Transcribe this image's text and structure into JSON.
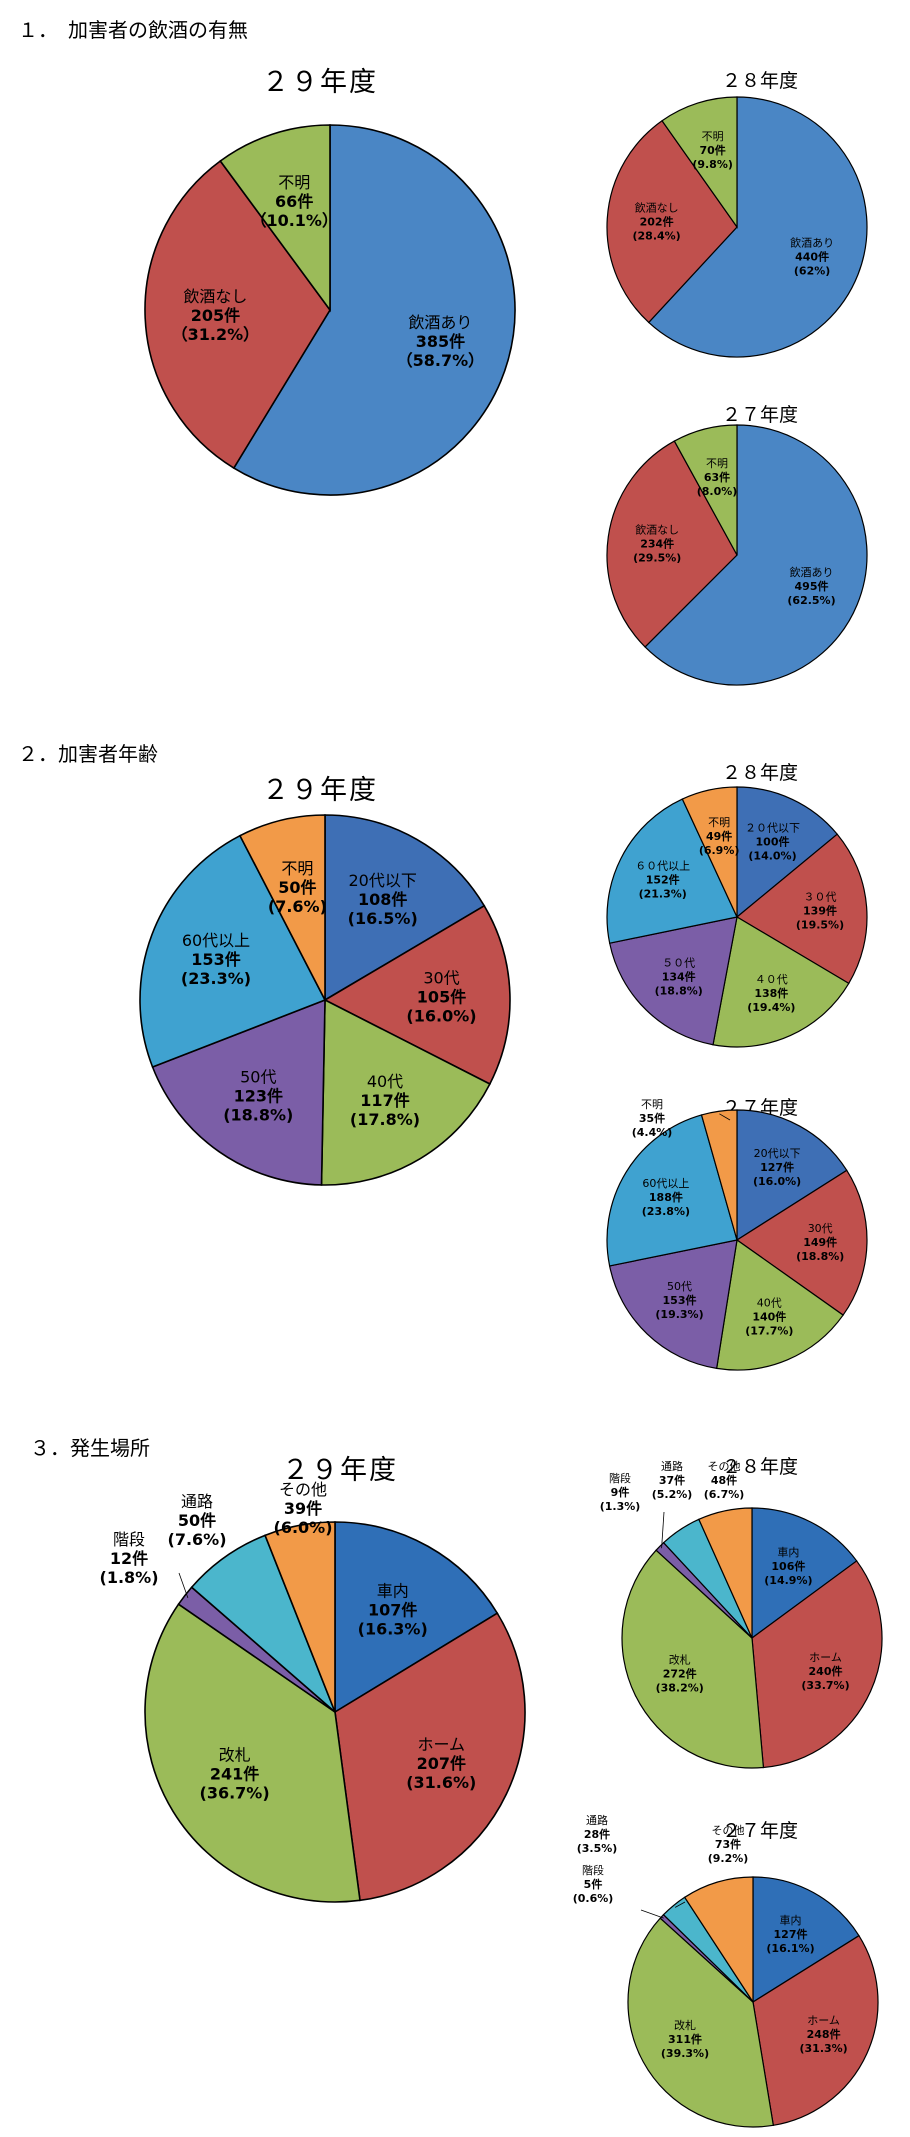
{
  "sections": [
    {
      "title": "１．　加害者の飲酒の有無",
      "charts": [
        {
          "year": "２９年度",
          "chart_data": {
            "type": "pie",
            "title": "２９年度",
            "slices": [
              {
                "name": "飲酒あり",
                "count_label": "385件",
                "pct_label": "（58.7%）",
                "value": 58.7,
                "color": "#4a86c5"
              },
              {
                "name": "飲酒なし",
                "count_label": "205件",
                "pct_label": "（31.2%）",
                "value": 31.2,
                "color": "#c0504d"
              },
              {
                "name": "不明",
                "count_label": "66件",
                "pct_label": "（10.1%）",
                "value": 10.1,
                "color": "#9bbb59"
              }
            ]
          }
        },
        {
          "year": "２８年度",
          "chart_data": {
            "type": "pie",
            "title": "２８年度",
            "slices": [
              {
                "name": "飲酒あり",
                "count_label": "440件",
                "pct_label": "(62%)",
                "value": 62.0,
                "color": "#4a86c5"
              },
              {
                "name": "飲酒なし",
                "count_label": "202件",
                "pct_label": "(28.4%)",
                "value": 28.4,
                "color": "#c0504d"
              },
              {
                "name": "不明",
                "count_label": "70件",
                "pct_label": "(9.8%)",
                "value": 9.8,
                "color": "#9bbb59"
              }
            ]
          }
        },
        {
          "year": "２７年度",
          "chart_data": {
            "type": "pie",
            "title": "２７年度",
            "slices": [
              {
                "name": "飲酒あり",
                "count_label": "495件",
                "pct_label": "(62.5%)",
                "value": 62.5,
                "color": "#4a86c5"
              },
              {
                "name": "飲酒なし",
                "count_label": "234件",
                "pct_label": "(29.5%)",
                "value": 29.5,
                "color": "#c0504d"
              },
              {
                "name": "不明",
                "count_label": "63件",
                "pct_label": "(8.0%)",
                "value": 8.0,
                "color": "#9bbb59"
              }
            ]
          }
        }
      ]
    },
    {
      "title": "２．加害者年齢",
      "charts": [
        {
          "year": "２９年度",
          "chart_data": {
            "type": "pie",
            "title": "２９年度",
            "slices": [
              {
                "name": "20代以下",
                "count_label": "108件",
                "pct_label": "(16.5%)",
                "value": 16.5,
                "color": "#3e6fb5"
              },
              {
                "name": "30代",
                "count_label": "105件",
                "pct_label": "(16.0%)",
                "value": 16.0,
                "color": "#c0504d"
              },
              {
                "name": "40代",
                "count_label": "117件",
                "pct_label": "(17.8%)",
                "value": 17.8,
                "color": "#9bbb59"
              },
              {
                "name": "50代",
                "count_label": "123件",
                "pct_label": "(18.8%)",
                "value": 18.8,
                "color": "#7b5ea7"
              },
              {
                "name": "60代以上",
                "count_label": "153件",
                "pct_label": "(23.3%)",
                "value": 23.3,
                "color": "#3fa2d0"
              },
              {
                "name": "不明",
                "count_label": "50件",
                "pct_label": "(7.6%)",
                "value": 7.6,
                "color": "#f29a48"
              }
            ]
          }
        },
        {
          "year": "２８年度",
          "chart_data": {
            "type": "pie",
            "title": "２８年度",
            "slices": [
              {
                "name": "２０代以下",
                "count_label": "100件",
                "pct_label": "(14.0%)",
                "value": 14.0,
                "color": "#3e6fb5"
              },
              {
                "name": "３０代",
                "count_label": "139件",
                "pct_label": "(19.5%)",
                "value": 19.5,
                "color": "#c0504d"
              },
              {
                "name": "４０代",
                "count_label": "138件",
                "pct_label": "(19.4%)",
                "value": 19.4,
                "color": "#9bbb59"
              },
              {
                "name": "５０代",
                "count_label": "134件",
                "pct_label": "(18.8%)",
                "value": 18.8,
                "color": "#7b5ea7"
              },
              {
                "name": "６０代以上",
                "count_label": "152件",
                "pct_label": "(21.3%)",
                "value": 21.3,
                "color": "#3fa2d0"
              },
              {
                "name": "不明",
                "count_label": "49件",
                "pct_label": "(6.9%)",
                "value": 6.9,
                "color": "#f29a48"
              }
            ]
          }
        },
        {
          "year": "２７年度",
          "chart_data": {
            "type": "pie",
            "title": "２７年度",
            "slices": [
              {
                "name": "20代以下",
                "count_label": "127件",
                "pct_label": "(16.0%)",
                "value": 16.0,
                "color": "#3e6fb5"
              },
              {
                "name": "30代",
                "count_label": "149件",
                "pct_label": "(18.8%)",
                "value": 18.8,
                "color": "#c0504d"
              },
              {
                "name": "40代",
                "count_label": "140件",
                "pct_label": "(17.7%)",
                "value": 17.7,
                "color": "#9bbb59"
              },
              {
                "name": "50代",
                "count_label": "153件",
                "pct_label": "(19.3%)",
                "value": 19.3,
                "color": "#7b5ea7"
              },
              {
                "name": "60代以上",
                "count_label": "188件",
                "pct_label": "(23.8%)",
                "value": 23.8,
                "color": "#3fa2d0"
              },
              {
                "name": "不明",
                "count_label": "35件",
                "pct_label": "(4.4%)",
                "value": 4.4,
                "color": "#f29a48"
              }
            ]
          }
        }
      ]
    },
    {
      "title": "３．発生場所",
      "charts": [
        {
          "year": "２９年度",
          "chart_data": {
            "type": "pie",
            "title": "２９年度",
            "slices": [
              {
                "name": "車内",
                "count_label": "107件",
                "pct_label": "(16.3%)",
                "value": 16.3,
                "color": "#2f6fb7"
              },
              {
                "name": "ホーム",
                "count_label": "207件",
                "pct_label": "(31.6%)",
                "value": 31.6,
                "color": "#c0504d"
              },
              {
                "name": "改札",
                "count_label": "241件",
                "pct_label": "(36.7%)",
                "value": 36.7,
                "color": "#9bbb59"
              },
              {
                "name": "階段",
                "count_label": "12件",
                "pct_label": "(1.8%)",
                "value": 1.8,
                "color": "#7b5ea7"
              },
              {
                "name": "通路",
                "count_label": "50件",
                "pct_label": "(7.6%)",
                "value": 7.6,
                "color": "#4bb6cc"
              },
              {
                "name": "その他",
                "count_label": "39件",
                "pct_label": "(6.0%)",
                "value": 6.0,
                "color": "#f29a48"
              }
            ]
          }
        },
        {
          "year": "２８年度",
          "chart_data": {
            "type": "pie",
            "title": "２８年度",
            "slices": [
              {
                "name": "車内",
                "count_label": "106件",
                "pct_label": "(14.9%)",
                "value": 14.9,
                "color": "#2f6fb7"
              },
              {
                "name": "ホーム",
                "count_label": "240件",
                "pct_label": "(33.7%)",
                "value": 33.7,
                "color": "#c0504d"
              },
              {
                "name": "改札",
                "count_label": "272件",
                "pct_label": "(38.2%)",
                "value": 38.2,
                "color": "#9bbb59"
              },
              {
                "name": "階段",
                "count_label": "9件",
                "pct_label": "(1.3%)",
                "value": 1.3,
                "color": "#7b5ea7"
              },
              {
                "name": "通路",
                "count_label": "37件",
                "pct_label": "(5.2%)",
                "value": 5.2,
                "color": "#4bb6cc"
              },
              {
                "name": "その他",
                "count_label": "48件",
                "pct_label": "(6.7%)",
                "value": 6.7,
                "color": "#f29a48"
              }
            ]
          }
        },
        {
          "year": "２７年度",
          "chart_data": {
            "type": "pie",
            "title": "２７年度",
            "slices": [
              {
                "name": "車内",
                "count_label": "127件",
                "pct_label": "(16.1%)",
                "value": 16.1,
                "color": "#2f6fb7"
              },
              {
                "name": "ホーム",
                "count_label": "248件",
                "pct_label": "(31.3%)",
                "value": 31.3,
                "color": "#c0504d"
              },
              {
                "name": "改札",
                "count_label": "311件",
                "pct_label": "(39.3%)",
                "value": 39.3,
                "color": "#9bbb59"
              },
              {
                "name": "階段",
                "count_label": "5件",
                "pct_label": "(0.6%)",
                "value": 0.6,
                "color": "#7b5ea7"
              },
              {
                "name": "通路",
                "count_label": "28件",
                "pct_label": "(3.5%)",
                "value": 3.5,
                "color": "#4bb6cc"
              },
              {
                "name": "その他",
                "count_label": "73件",
                "pct_label": "(9.2%)",
                "value": 9.2,
                "color": "#f29a48"
              }
            ]
          }
        }
      ]
    }
  ]
}
